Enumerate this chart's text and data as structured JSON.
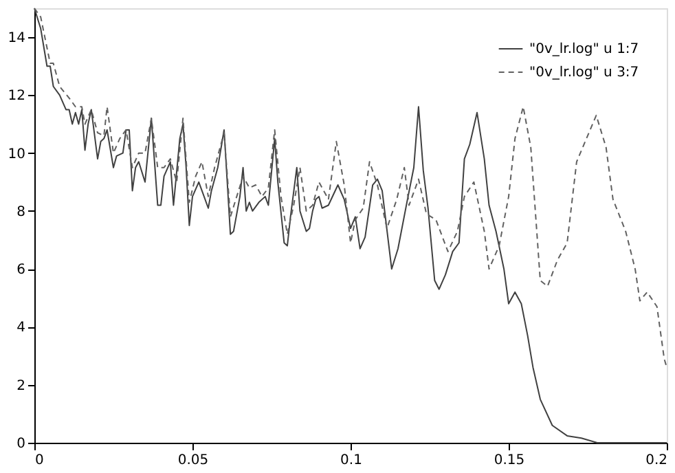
{
  "chart_data": {
    "type": "line",
    "xlim": [
      0,
      0.2
    ],
    "ylim": [
      0,
      15
    ],
    "xticks": [
      0,
      0.05,
      0.1,
      0.15,
      0.2
    ],
    "yticks": [
      0,
      2,
      4,
      6,
      8,
      10,
      12,
      14
    ],
    "grid": false,
    "legend": "top right",
    "marker": "none",
    "series": [
      {
        "name": "\"0v_lr.log\" u 1:7",
        "color": "#404040",
        "line_style": "solid",
        "x": [
          0,
          0.002,
          0.004,
          0.005,
          0.006,
          0.008,
          0.01,
          0.011,
          0.012,
          0.013,
          0.014,
          0.015,
          0.016,
          0.017,
          0.018,
          0.02,
          0.021,
          0.022,
          0.023,
          0.025,
          0.026,
          0.028,
          0.029,
          0.03,
          0.031,
          0.032,
          0.033,
          0.035,
          0.037,
          0.039,
          0.04,
          0.041,
          0.043,
          0.044,
          0.046,
          0.047,
          0.048,
          0.049,
          0.05,
          0.052,
          0.053,
          0.055,
          0.056,
          0.058,
          0.06,
          0.061,
          0.062,
          0.063,
          0.065,
          0.066,
          0.067,
          0.068,
          0.069,
          0.071,
          0.073,
          0.074,
          0.076,
          0.077,
          0.079,
          0.08,
          0.081,
          0.083,
          0.084,
          0.086,
          0.087,
          0.088,
          0.089,
          0.09,
          0.091,
          0.093,
          0.096,
          0.098,
          0.1,
          0.1015,
          0.103,
          0.1046,
          0.107,
          0.1085,
          0.11,
          0.113,
          0.115,
          0.118,
          0.12,
          0.1215,
          0.123,
          0.1245,
          0.1266,
          0.128,
          0.13,
          0.1323,
          0.1343,
          0.136,
          0.1377,
          0.14,
          0.1423,
          0.1438,
          0.146,
          0.1485,
          0.15,
          0.152,
          0.154,
          0.156,
          0.1577,
          0.16,
          0.1638,
          0.1685,
          0.173,
          0.178,
          0.2
        ],
        "values": [
          15,
          14.3,
          13,
          13,
          12.3,
          12,
          11.5,
          11.5,
          11,
          11.4,
          11,
          11.5,
          10.1,
          11,
          11.5,
          9.8,
          10.4,
          10.5,
          10.8,
          9.5,
          9.9,
          10,
          10.8,
          10.8,
          8.7,
          9.5,
          9.7,
          9,
          11.2,
          8.2,
          8.2,
          9.2,
          9.7,
          8.2,
          10.5,
          11,
          9.5,
          7.5,
          8.5,
          9,
          8.7,
          8.1,
          8.7,
          9.5,
          10.8,
          9,
          7.2,
          7.3,
          8.5,
          9.5,
          8,
          8.3,
          8,
          8.3,
          8.5,
          8.2,
          10.5,
          9,
          6.9,
          6.8,
          7.8,
          9.5,
          8,
          7.3,
          7.4,
          8,
          8.4,
          8.5,
          8.1,
          8.2,
          8.9,
          8.4,
          7.4,
          7.8,
          6.7,
          7.1,
          8.9,
          9.1,
          8.7,
          6,
          6.7,
          8.4,
          9.5,
          11.6,
          9.4,
          8.1,
          5.6,
          5.3,
          5.8,
          6.6,
          6.9,
          9.8,
          10.3,
          11.4,
          9.8,
          8.2,
          7.3,
          6,
          4.8,
          5.2,
          4.8,
          3.7,
          2.6,
          1.5,
          0.6,
          0.24,
          0.16,
          0,
          0
        ]
      },
      {
        "name": "\"0v_lr.log\" u 3:7",
        "color": "#606060",
        "line_style": "dashed",
        "x": [
          0,
          0.002,
          0.005,
          0.006,
          0.008,
          0.011,
          0.013,
          0.015,
          0.016,
          0.018,
          0.02,
          0.022,
          0.023,
          0.025,
          0.027,
          0.029,
          0.031,
          0.033,
          0.035,
          0.037,
          0.039,
          0.041,
          0.043,
          0.045,
          0.047,
          0.049,
          0.051,
          0.053,
          0.055,
          0.057,
          0.06,
          0.062,
          0.064,
          0.066,
          0.068,
          0.07,
          0.072,
          0.074,
          0.076,
          0.078,
          0.08,
          0.082,
          0.084,
          0.086,
          0.088,
          0.09,
          0.093,
          0.0955,
          0.098,
          0.1,
          0.1015,
          0.104,
          0.106,
          0.1085,
          0.1115,
          0.1146,
          0.117,
          0.1185,
          0.1215,
          0.124,
          0.127,
          0.1308,
          0.1338,
          0.136,
          0.139,
          0.1423,
          0.1438,
          0.147,
          0.15,
          0.152,
          0.1546,
          0.157,
          0.16,
          0.1623,
          0.1654,
          0.1685,
          0.1715,
          0.1746,
          0.1777,
          0.1808,
          0.183,
          0.187,
          0.19,
          0.1915,
          0.1938,
          0.1969,
          0.1992,
          0.2
        ],
        "values": [
          15,
          14.7,
          13.1,
          13.1,
          12.3,
          11.9,
          11.6,
          11.6,
          11,
          11.5,
          10.7,
          10.6,
          11.6,
          10,
          10.5,
          10.8,
          9.5,
          10,
          10,
          11.2,
          9.5,
          9.5,
          9.8,
          9,
          11.2,
          8.3,
          9.2,
          9.7,
          8.5,
          9.5,
          10.7,
          7.8,
          8.5,
          9.2,
          8.8,
          8.9,
          8.5,
          8.8,
          10.8,
          8.5,
          7.2,
          8.2,
          9.5,
          8,
          8.2,
          9,
          8.4,
          10.4,
          8.9,
          6.9,
          7.7,
          8.1,
          9.7,
          8.9,
          7.4,
          8.4,
          9.5,
          8.2,
          9.1,
          7.9,
          7.7,
          6.6,
          7.3,
          8.5,
          9,
          7.3,
          6,
          6.8,
          8.5,
          10.5,
          11.6,
          10.2,
          5.6,
          5.4,
          6.3,
          6.9,
          9.7,
          10.5,
          11.3,
          10.2,
          8.4,
          7.3,
          6,
          4.9,
          5.2,
          4.7,
          2.9,
          2.6
        ]
      }
    ]
  }
}
